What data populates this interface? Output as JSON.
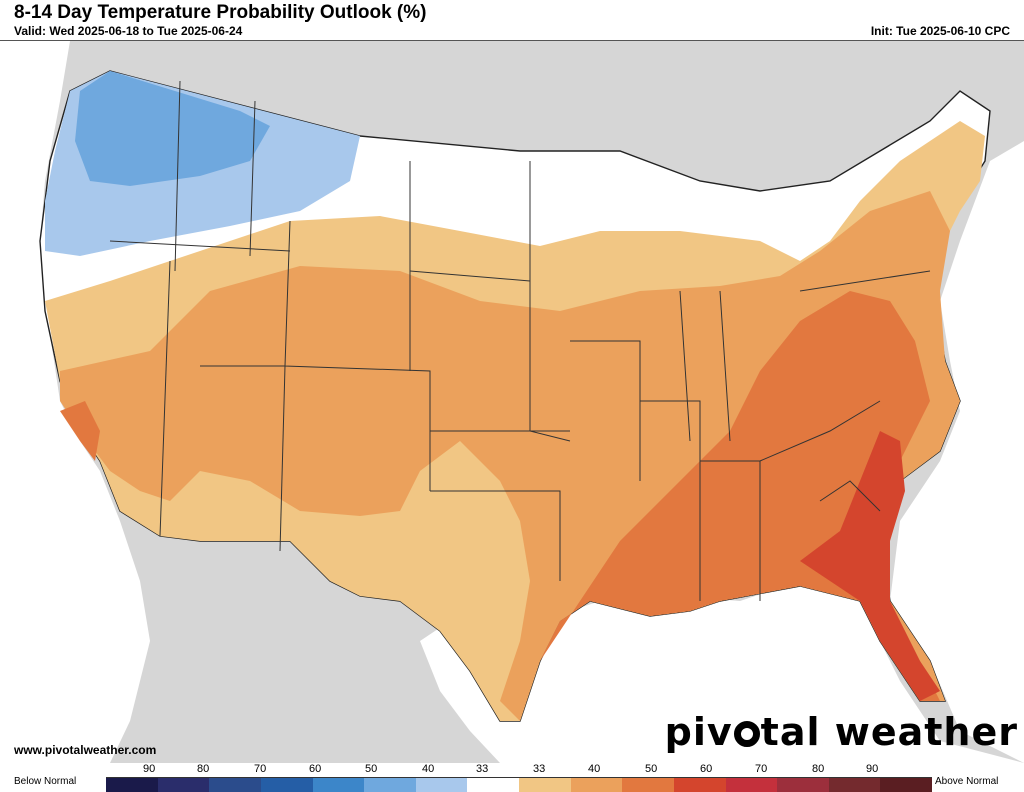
{
  "header": {
    "title": "8-14 Day Temperature Probability Outlook (%)",
    "valid": "Valid: Wed 2025-06-18 to Tue 2025-06-24",
    "init": "Init: Tue 2025-06-10 CPC"
  },
  "footer": {
    "website": "www.pivotalweather.com",
    "brand_left": "piv",
    "brand_right": "tal weather"
  },
  "legend": {
    "below_label": "Below Normal",
    "above_label": "Above Normal",
    "tick_labels": [
      "90",
      "80",
      "70",
      "60",
      "50",
      "40",
      "33",
      "33",
      "40",
      "50",
      "60",
      "70",
      "80",
      "90"
    ],
    "colors": [
      "#1a1a4a",
      "#2a2d6b",
      "#2b4c8c",
      "#255ea6",
      "#3c86c9",
      "#6fa8de",
      "#a8c8ec",
      "#ffffff",
      "#f1c684",
      "#eba15c",
      "#e2783f",
      "#d4452d",
      "#c4303c",
      "#9c2f3c",
      "#742a2e",
      "#5a1e22"
    ]
  },
  "colors": {
    "land_outside": "#d6d6d6",
    "water": "#ffffff",
    "near_normal": "#ffffff",
    "above_40": "#f1c684",
    "above_50": "#eba15c",
    "above_60": "#e2783f",
    "above_70": "#d4452d",
    "below_40": "#a8c8ec",
    "below_50": "#6fa8de"
  }
}
